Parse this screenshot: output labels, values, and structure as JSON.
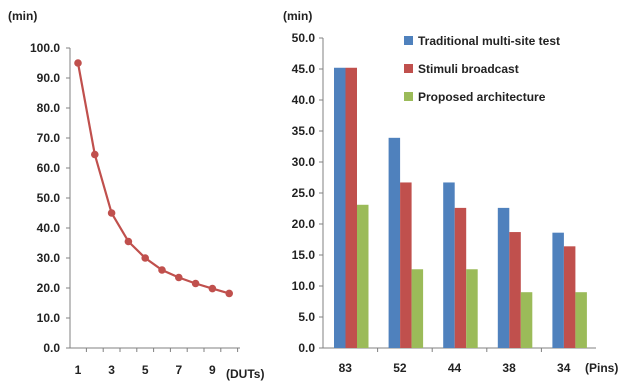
{
  "colors": {
    "line": "#c0504d",
    "traditional": "#4f81bd",
    "broadcast": "#c0504d",
    "proposed": "#9bbb59",
    "axis": "#808080"
  },
  "chart_data": [
    {
      "type": "line",
      "title": "",
      "ylabel": "(min)",
      "xlabel": "(DUTs)",
      "x": [
        1,
        2,
        3,
        4,
        5,
        6,
        7,
        8,
        9,
        10
      ],
      "x_tick_labels": [
        "1",
        "3",
        "5",
        "7",
        "9"
      ],
      "series": [
        {
          "values": [
            95.0,
            64.5,
            45.0,
            35.5,
            30.0,
            26.0,
            23.5,
            21.5,
            19.8,
            18.2
          ]
        }
      ],
      "ylim": [
        0,
        100
      ],
      "y_tick_labels": [
        "0.0",
        "10.0",
        "20.0",
        "30.0",
        "40.0",
        "50.0",
        "60.0",
        "70.0",
        "80.0",
        "90.0",
        "100.0"
      ],
      "grid": false
    },
    {
      "type": "bar",
      "title": "",
      "ylabel": "(min)",
      "xlabel": "(Pins)",
      "categories": [
        "83",
        "52",
        "44",
        "38",
        "34"
      ],
      "series": [
        {
          "name": "Traditional multi-site test",
          "values": [
            45.2,
            33.9,
            26.7,
            22.6,
            18.6
          ]
        },
        {
          "name": "Stimuli broadcast",
          "values": [
            45.2,
            26.7,
            22.6,
            18.7,
            16.4
          ]
        },
        {
          "name": "Proposed architecture",
          "values": [
            23.1,
            12.7,
            12.7,
            9.0,
            9.0
          ]
        }
      ],
      "ylim": [
        0,
        50
      ],
      "y_tick_labels": [
        "0.0",
        "5.0",
        "10.0",
        "15.0",
        "20.0",
        "25.0",
        "30.0",
        "35.0",
        "40.0",
        "45.0",
        "50.0"
      ],
      "legend_position": "top-right",
      "grid": false
    }
  ]
}
